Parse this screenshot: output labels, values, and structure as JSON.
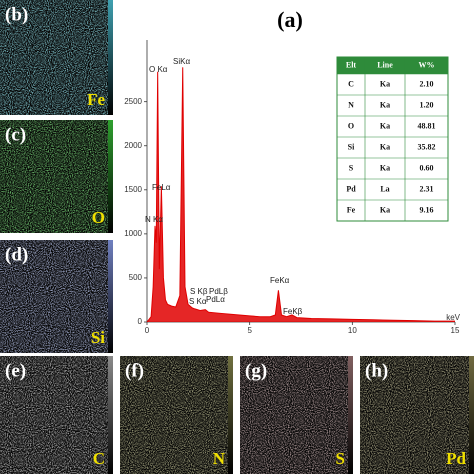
{
  "chart_data": {
    "type": "area",
    "title": "(a)",
    "x_label": "keV",
    "x": [
      0,
      0.2,
      0.3,
      0.39,
      0.45,
      0.52,
      0.6,
      0.7,
      0.8,
      0.9,
      1.0,
      1.2,
      1.4,
      1.6,
      1.74,
      1.85,
      2.0,
      2.2,
      2.31,
      2.45,
      2.6,
      2.84,
      3.0,
      3.5,
      4,
      5,
      5.5,
      6,
      6.25,
      6.4,
      6.55,
      6.8,
      7.06,
      7.3,
      8,
      9,
      10,
      11,
      12,
      13,
      14,
      15
    ],
    "values": [
      0,
      60,
      400,
      1090,
      900,
      2840,
      600,
      1540,
      500,
      250,
      200,
      180,
      170,
      300,
      2890,
      400,
      200,
      160,
      150,
      140,
      130,
      140,
      110,
      100,
      90,
      70,
      60,
      60,
      80,
      360,
      80,
      60,
      80,
      50,
      40,
      35,
      30,
      25,
      20,
      15,
      10,
      10
    ],
    "color": "#e00000",
    "xlim": [
      0,
      15
    ],
    "xticks": [
      0,
      5,
      10,
      15
    ],
    "ylim": [
      0,
      3200
    ],
    "yticks": [
      0,
      500,
      1000,
      1500,
      2000,
      2500
    ],
    "annotations": [
      "O Kα",
      "SiKα",
      "FeLα",
      "N Kα",
      "S Kβ",
      "S Kα",
      "PdLβ",
      "PdLα",
      "FeKα",
      "FeKβ"
    ],
    "table": {
      "header": [
        "Elt",
        "Line",
        "W%"
      ],
      "rows": [
        [
          "C",
          "Ka",
          "2.10"
        ],
        [
          "N",
          "Ka",
          "1.20"
        ],
        [
          "O",
          "Ka",
          "48.81"
        ],
        [
          "Si",
          "Ka",
          "35.82"
        ],
        [
          "S",
          "Ka",
          "0.60"
        ],
        [
          "Pd",
          "La",
          "2.31"
        ],
        [
          "Fe",
          "Ka",
          "9.16"
        ]
      ]
    }
  },
  "maps": [
    {
      "label": "(b)",
      "element": "Fe",
      "color": "#3fa0b0"
    },
    {
      "label": "(c)",
      "element": "O",
      "color": "#2fa02f"
    },
    {
      "label": "(d)",
      "element": "Si",
      "color": "#7080c0"
    },
    {
      "label": "(e)",
      "element": "C",
      "color": "#8a8a8a"
    },
    {
      "label": "(f)",
      "element": "N",
      "color": "#707040"
    },
    {
      "label": "(g)",
      "element": "S",
      "color": "#806060"
    },
    {
      "label": "(h)",
      "element": "Pd",
      "color": "#706a40"
    }
  ]
}
